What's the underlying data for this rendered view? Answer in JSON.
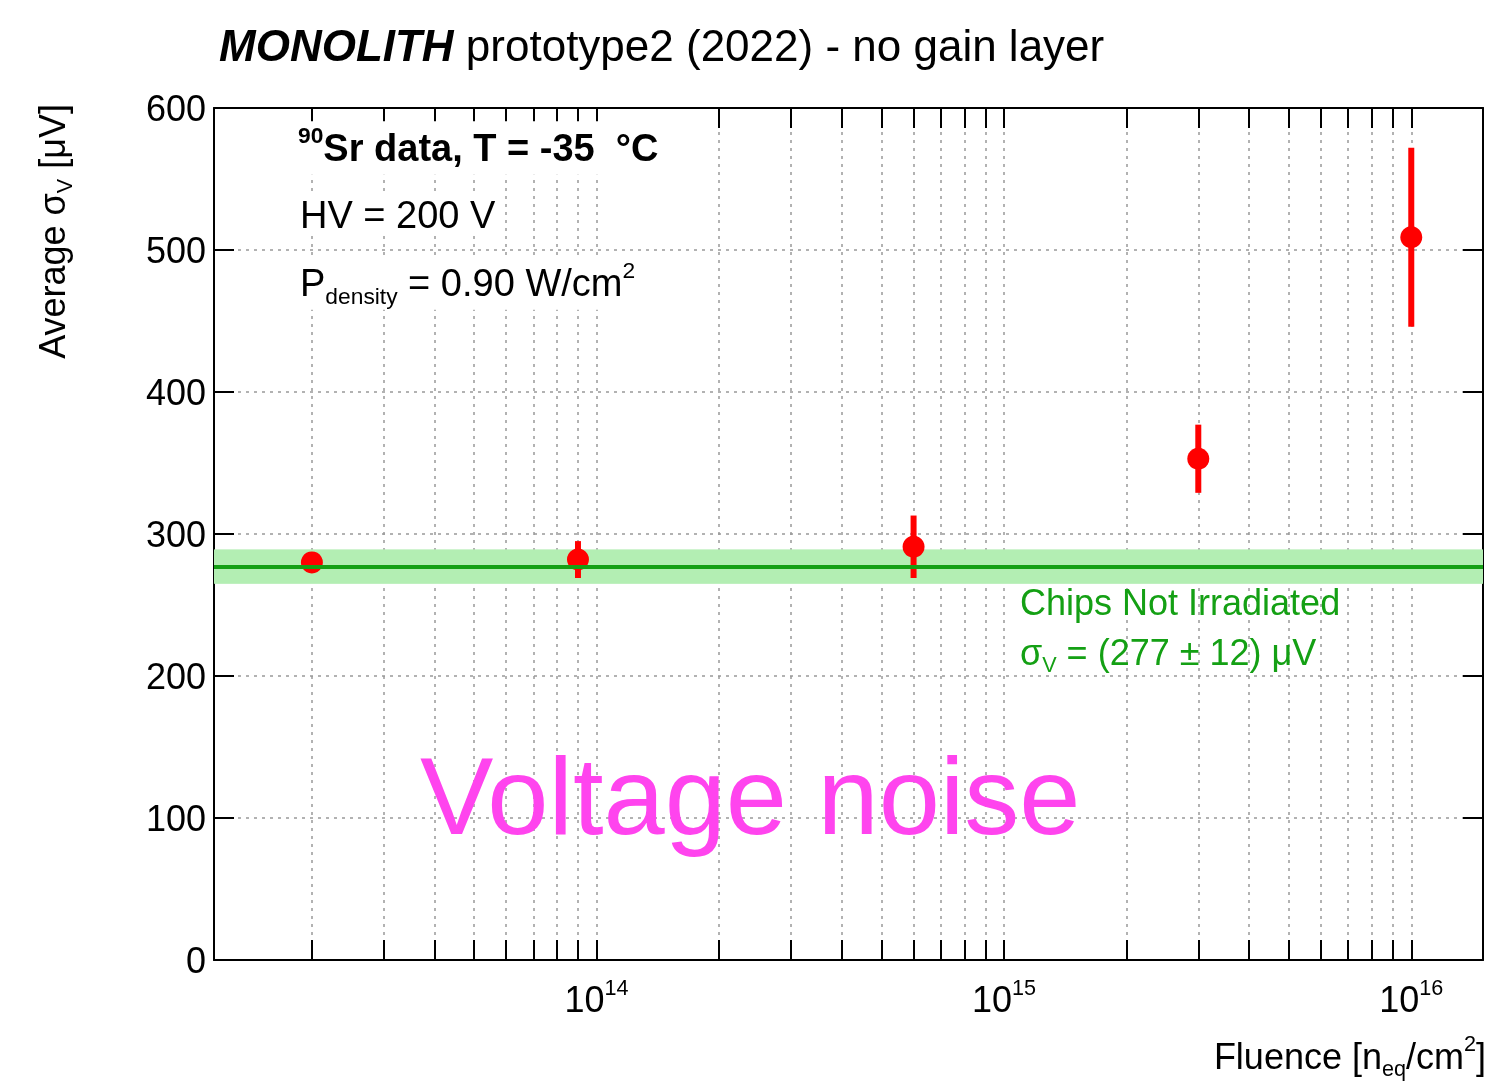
{
  "chart_data": {
    "type": "scatter",
    "title": "MONOLITH prototype2 (2022) - no gain layer",
    "xlabel": "Fluence [n$_{eq}$/cm$^{2}$]",
    "ylabel": "Average σ$_{V}$ [μV]",
    "annotations": [
      "$^{90}$Sr data, T = -35  °C",
      "HV = 200 V",
      "P$_{density}$ = 0.90 W/cm$^{2}$",
      "Voltage noise"
    ],
    "log": "x",
    "x": [
      20000000000000.0,
      90000000000000.0,
      600000000000000.0,
      3000000000000000.0,
      1e+16
    ],
    "series": [
      {
        "color": "#ff0000",
        "values": [
          280,
          282,
          291,
          353,
          509
        ],
        "errors": [
          4,
          13,
          22,
          24,
          63
        ]
      }
    ],
    "xlim": [
      11500000000000.0,
      1.5e+16
    ],
    "xticks": [
      {
        "value": 20000000000000.0,
        "label": null
      },
      {
        "value": 30000000000000.0,
        "label": null
      },
      {
        "value": 40000000000000.0,
        "label": null
      },
      {
        "value": 50000000000000.0,
        "label": null
      },
      {
        "value": 60000000000000.0,
        "label": null
      },
      {
        "value": 70000000000000.0,
        "label": null
      },
      {
        "value": 80000000000000.0,
        "label": null
      },
      {
        "value": 90000000000000.0,
        "label": null
      },
      {
        "value": 100000000000000.0,
        "label": "10$^{14}$"
      },
      {
        "value": 200000000000000.0,
        "label": null
      },
      {
        "value": 300000000000000.0,
        "label": null
      },
      {
        "value": 400000000000000.0,
        "label": null
      },
      {
        "value": 500000000000000.0,
        "label": null
      },
      {
        "value": 600000000000000.0,
        "label": null
      },
      {
        "value": 700000000000000.0,
        "label": null
      },
      {
        "value": 800000000000000.0,
        "label": null
      },
      {
        "value": 900000000000000.0,
        "label": null
      },
      {
        "value": 1000000000000000.0,
        "label": "10$^{15}$"
      },
      {
        "value": 2000000000000000.0,
        "label": null
      },
      {
        "value": 3000000000000000.0,
        "label": null
      },
      {
        "value": 4000000000000000.0,
        "label": null
      },
      {
        "value": 5000000000000000.0,
        "label": null
      },
      {
        "value": 6000000000000000.0,
        "label": null
      },
      {
        "value": 7000000000000000.0,
        "label": null
      },
      {
        "value": 8000000000000000.0,
        "label": null
      },
      {
        "value": 9000000000000000.0,
        "label": null
      },
      {
        "value": 1e+16,
        "label": "10$^{16}$"
      }
    ],
    "ylim": [
      0,
      600
    ],
    "yticks": [
      0,
      100,
      200,
      300,
      400,
      500,
      600
    ],
    "grid": true,
    "marker": "circle",
    "ref_lines": [
      {
        "axis": "y",
        "value": 277,
        "label": "σ$_{V}$ = (277 ± 12) μV",
        "color": "#14a014"
      }
    ],
    "bands": [
      {
        "axis": "y",
        "from": 265,
        "to": 289,
        "label": "Chips Not Irradiated",
        "color": "#b3eeb3"
      }
    ]
  }
}
